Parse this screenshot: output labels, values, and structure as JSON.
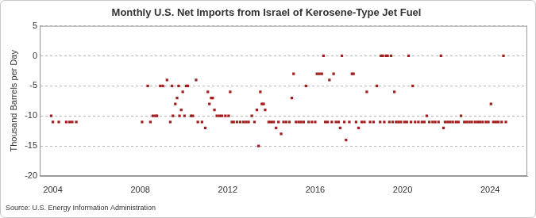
{
  "chart_data": {
    "type": "scatter",
    "title": "Monthly U.S. Net Imports from Israel of Kerosene-Type Jet Fuel",
    "y_label": "Thousand Barrels per Day",
    "source": "Source: U.S. Energy Information Administration",
    "color": "#a31f1f",
    "marker": "square",
    "grid": true,
    "xlim": [
      2003.4,
      2025.7
    ],
    "xticks": [
      2004,
      2008,
      2012,
      2016,
      2020,
      2024
    ],
    "ylim": [
      -20,
      5
    ],
    "yticks": [
      -20,
      -15,
      -10,
      -5,
      0,
      5
    ],
    "x": [
      2003.92,
      2004.0,
      2004.27,
      2004.61,
      2004.76,
      2004.88,
      2005.07,
      2008.08,
      2008.34,
      2008.46,
      2008.57,
      2008.69,
      2008.76,
      2008.91,
      2009.03,
      2009.22,
      2009.37,
      2009.45,
      2009.49,
      2009.6,
      2009.68,
      2009.75,
      2009.79,
      2009.87,
      2009.94,
      2010.02,
      2010.1,
      2010.17,
      2010.32,
      2010.4,
      2010.55,
      2010.63,
      2010.82,
      2010.97,
      2011.09,
      2011.16,
      2011.24,
      2011.31,
      2011.39,
      2011.5,
      2011.62,
      2011.73,
      2011.89,
      2012.04,
      2012.11,
      2012.19,
      2012.27,
      2012.42,
      2012.57,
      2012.72,
      2012.84,
      2012.95,
      2013.1,
      2013.22,
      2013.33,
      2013.41,
      2013.49,
      2013.56,
      2013.64,
      2013.71,
      2013.87,
      2013.98,
      2014.1,
      2014.21,
      2014.32,
      2014.44,
      2014.55,
      2014.67,
      2014.82,
      2014.93,
      2015.01,
      2015.12,
      2015.24,
      2015.35,
      2015.47,
      2015.58,
      2015.7,
      2015.85,
      2016.0,
      2016.08,
      2016.19,
      2016.3,
      2016.38,
      2016.46,
      2016.57,
      2016.65,
      2016.76,
      2016.84,
      2016.95,
      2017.07,
      2017.14,
      2017.22,
      2017.33,
      2017.41,
      2017.56,
      2017.68,
      2017.75,
      2017.87,
      2017.98,
      2018.13,
      2018.25,
      2018.36,
      2018.51,
      2018.67,
      2018.82,
      2018.97,
      2019.01,
      2019.09,
      2019.16,
      2019.24,
      2019.31,
      2019.39,
      2019.47,
      2019.54,
      2019.62,
      2019.7,
      2019.81,
      2019.92,
      2020.08,
      2020.19,
      2020.27,
      2020.38,
      2020.46,
      2020.57,
      2020.72,
      2020.88,
      2020.99,
      2021.1,
      2021.22,
      2021.37,
      2021.49,
      2021.64,
      2021.75,
      2021.87,
      2021.94,
      2022.06,
      2022.17,
      2022.29,
      2022.44,
      2022.55,
      2022.67,
      2022.82,
      2022.93,
      2023.05,
      2023.16,
      2023.31,
      2023.43,
      2023.54,
      2023.66,
      2023.81,
      2023.92,
      2024.04,
      2024.15,
      2024.27,
      2024.38,
      2024.53,
      2024.61,
      2024.72
    ],
    "values": [
      -10,
      -11,
      -11,
      -11,
      -11,
      -11,
      -11,
      -11,
      -5,
      -11,
      -10,
      -10,
      -10,
      -5,
      -5,
      -4,
      -11,
      -5,
      -10,
      -8,
      -7,
      -5,
      -10,
      -9,
      -6,
      -10,
      -5,
      -5,
      -10,
      -10,
      -4,
      -11,
      -11,
      -12,
      -6,
      -8,
      -7,
      -7,
      -9,
      -10,
      -10,
      -10,
      -10,
      -10,
      -6,
      -11,
      -11,
      -11,
      -11,
      -11,
      -11,
      -11,
      -10,
      -11,
      -9,
      -15,
      -6,
      -8,
      -8,
      -9,
      -11,
      -11,
      -11,
      -12,
      -11,
      -13,
      -11,
      -11,
      -11,
      -7,
      -3,
      -11,
      -11,
      -11,
      -11,
      -5,
      -11,
      -11,
      -11,
      -3,
      -3,
      -3,
      0,
      -11,
      -11,
      -4,
      -11,
      -3,
      -11,
      -11,
      -12,
      0,
      -11,
      -14,
      -11,
      -3,
      -3,
      -11,
      -12,
      -11,
      -11,
      -6,
      -11,
      -11,
      -5,
      -11,
      0,
      0,
      -11,
      0,
      0,
      -11,
      0,
      -11,
      -6,
      -11,
      -11,
      -11,
      -11,
      -11,
      0,
      -11,
      -5,
      -11,
      -11,
      -11,
      -11,
      -10,
      -11,
      -11,
      -11,
      -11,
      0,
      -12,
      -11,
      -11,
      -11,
      -11,
      -11,
      -11,
      -10,
      -11,
      -11,
      -11,
      -11,
      -11,
      -11,
      -11,
      -11,
      -11,
      -11,
      -8,
      -11,
      -11,
      -11,
      -11,
      0,
      -11
    ]
  }
}
